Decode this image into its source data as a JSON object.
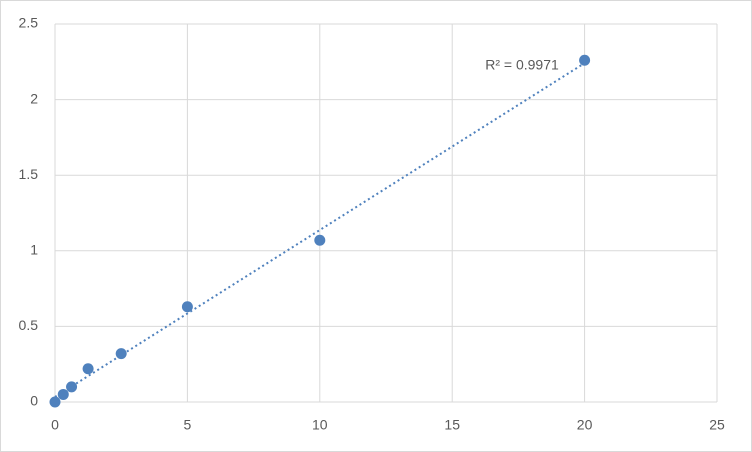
{
  "chart_data": {
    "type": "scatter",
    "annotation": "R² = 0.9971",
    "x": [
      0,
      0.3125,
      0.625,
      1.25,
      2.5,
      5,
      10,
      20
    ],
    "series": [
      {
        "color": "#4f81bd",
        "values": [
          0,
          0.05,
          0.1,
          0.22,
          0.32,
          0.63,
          1.07,
          2.26
        ]
      }
    ],
    "trendline": "linear",
    "xlim": [
      0,
      25
    ],
    "xticks": [
      0,
      5,
      10,
      15,
      20,
      25
    ],
    "ylim": [
      0,
      2.5
    ],
    "yticks": [
      0,
      0.5,
      1,
      1.5,
      2,
      2.5
    ],
    "grid": true
  }
}
